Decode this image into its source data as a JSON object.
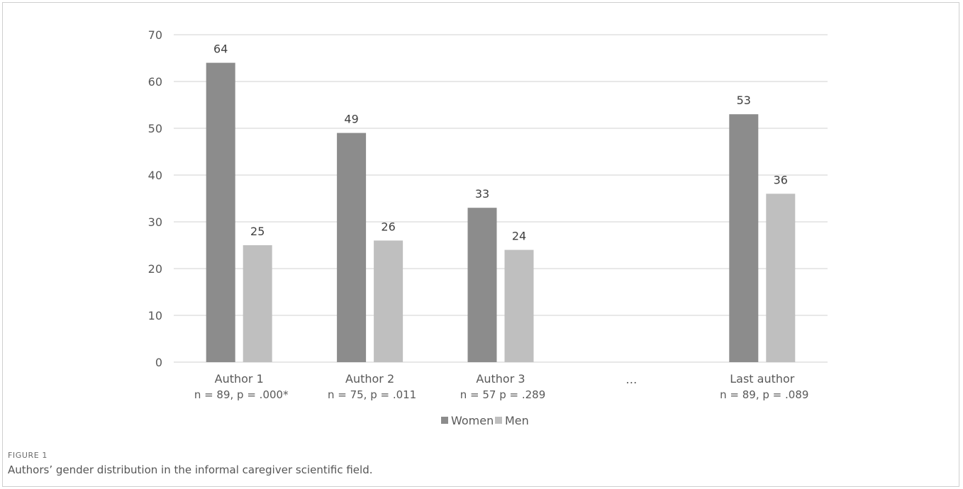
{
  "chart_data": {
    "type": "bar",
    "categories": [
      "Author 1",
      "Author 2",
      "Author 3",
      "...",
      "Last author"
    ],
    "category_notes": [
      "n = 89, p = .000*",
      "n = 75, p = .011",
      "n = 57 p = .289",
      "",
      "n = 89, p = .089"
    ],
    "series": [
      {
        "name": "Women",
        "values": [
          64,
          49,
          33,
          null,
          53
        ],
        "color": "#8c8c8c"
      },
      {
        "name": "Men",
        "values": [
          25,
          26,
          24,
          null,
          36
        ],
        "color": "#bfbfbf"
      }
    ],
    "ylim": [
      0,
      70
    ],
    "yticks": [
      0,
      10,
      20,
      30,
      40,
      50,
      60,
      70
    ],
    "grid": true,
    "legend": "bottom",
    "data_labels": true
  },
  "figure": {
    "label": "FIGURE 1",
    "caption": "Authors’ gender distribution in the informal caregiver scientific field."
  }
}
